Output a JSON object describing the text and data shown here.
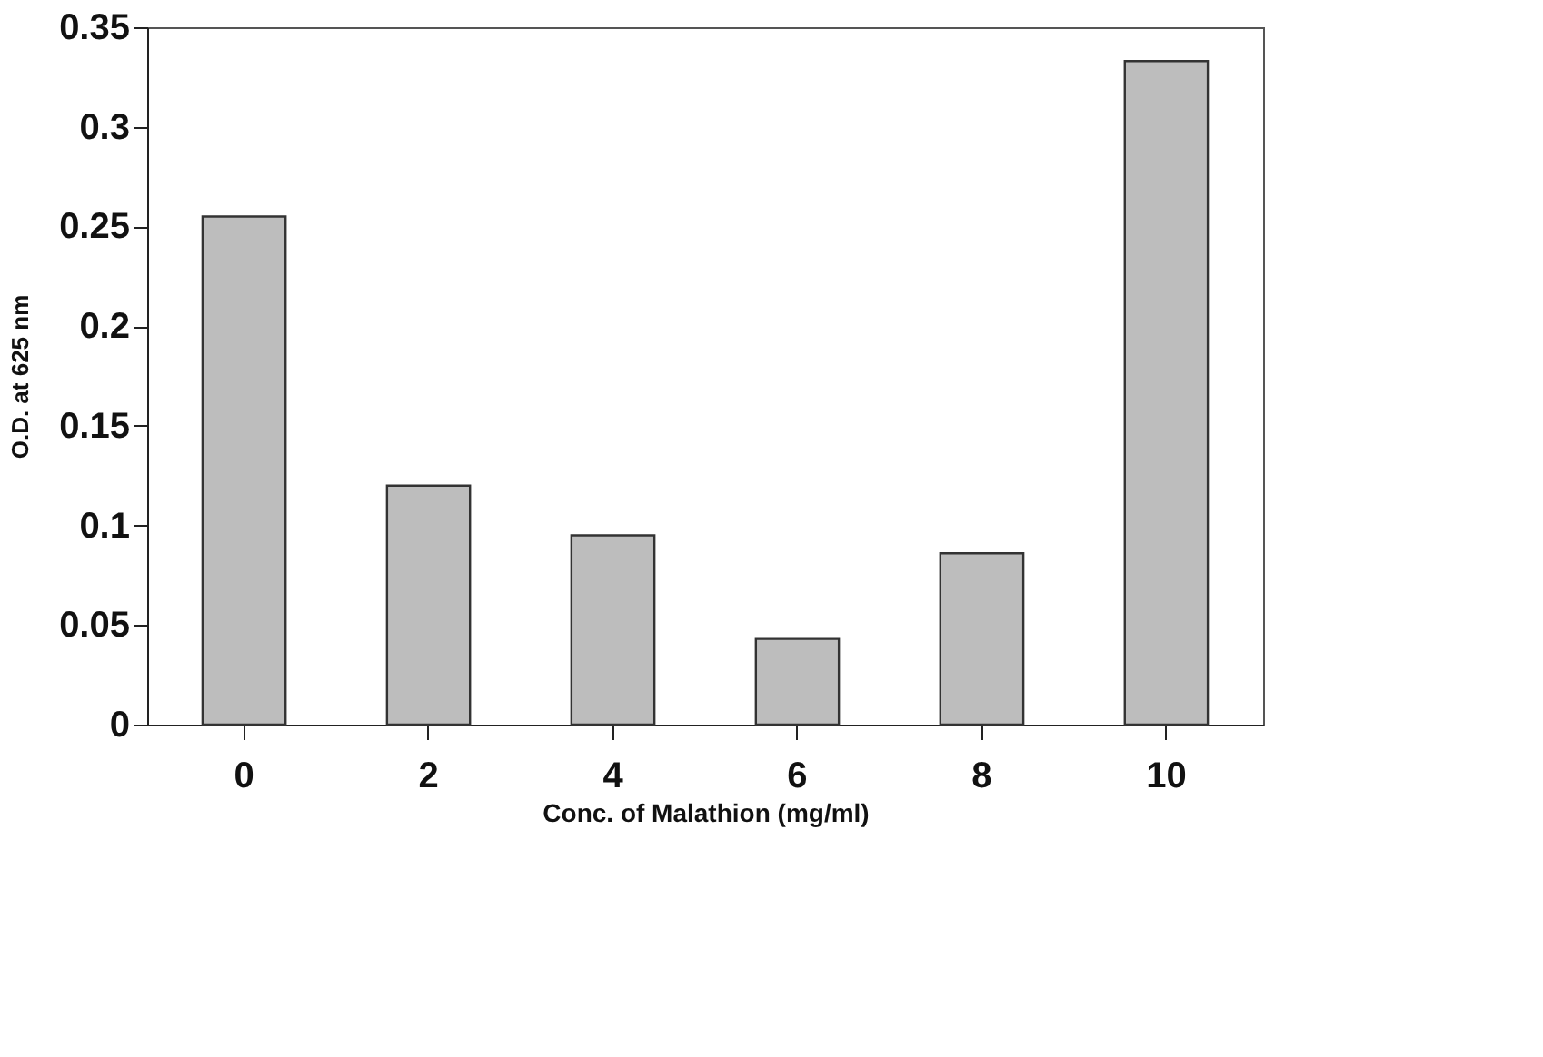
{
  "chart_data": {
    "type": "bar",
    "xlabel": "Conc. of Malathion (mg/ml)",
    "ylabel": "O.D. at 625 nm",
    "categories": [
      "0",
      "2",
      "4",
      "6",
      "8",
      "10"
    ],
    "values": [
      0.255,
      0.12,
      0.095,
      0.043,
      0.086,
      0.333
    ],
    "color": "#bdbdbd",
    "ylim": [
      0,
      0.35
    ],
    "yticks": [
      0,
      0.05,
      0.1,
      0.15,
      0.2,
      0.25,
      0.3,
      0.35
    ],
    "grid": false
  }
}
